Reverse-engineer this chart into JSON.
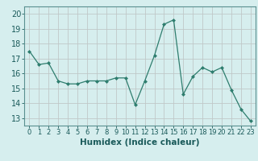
{
  "x": [
    0,
    1,
    2,
    3,
    4,
    5,
    6,
    7,
    8,
    9,
    10,
    11,
    12,
    13,
    14,
    15,
    16,
    17,
    18,
    19,
    20,
    21,
    22,
    23
  ],
  "y": [
    17.5,
    16.6,
    16.7,
    15.5,
    15.3,
    15.3,
    15.5,
    15.5,
    15.5,
    15.7,
    15.7,
    13.9,
    15.5,
    17.2,
    19.3,
    19.6,
    14.6,
    15.8,
    16.4,
    16.1,
    16.4,
    14.9,
    13.6,
    12.8
  ],
  "line_color": "#2e7d6e",
  "marker": "D",
  "marker_size": 2.0,
  "bg_color": "#d6eeee",
  "grid_color": "#c0c8c8",
  "xlabel": "Humidex (Indice chaleur)",
  "xlabel_fontsize": 7.5,
  "tick_fontsize": 7,
  "ylim": [
    12.5,
    20.5
  ],
  "yticks": [
    13,
    14,
    15,
    16,
    17,
    18,
    19,
    20
  ],
  "xticks": [
    0,
    1,
    2,
    3,
    4,
    5,
    6,
    7,
    8,
    9,
    10,
    11,
    12,
    13,
    14,
    15,
    16,
    17,
    18,
    19,
    20,
    21,
    22,
    23
  ],
  "xlim": [
    -0.5,
    23.5
  ]
}
